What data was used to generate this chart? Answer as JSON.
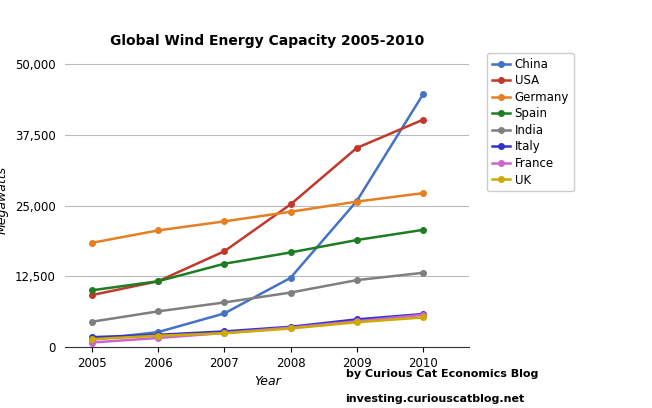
{
  "title": "Global Wind Energy Capacity 2005-2010",
  "xlabel": "Year",
  "ylabel": "Megawatts",
  "years": [
    2005,
    2006,
    2007,
    2008,
    2009,
    2010
  ],
  "series": [
    {
      "label": "China",
      "color": "#4472C4",
      "values": [
        1260,
        2600,
        5900,
        12200,
        25800,
        44700
      ]
    },
    {
      "label": "USA",
      "color": "#C0392B",
      "values": [
        9150,
        11600,
        16900,
        25200,
        35200,
        40200
      ]
    },
    {
      "label": "Germany",
      "color": "#E67E22",
      "values": [
        18400,
        20600,
        22200,
        23900,
        25700,
        27200
      ]
    },
    {
      "label": "Spain",
      "color": "#1E7D22",
      "values": [
        10000,
        11600,
        14700,
        16700,
        18900,
        20700
      ]
    },
    {
      "label": "India",
      "color": "#7F7F7F",
      "values": [
        4430,
        6270,
        7850,
        9600,
        11800,
        13100
      ]
    },
    {
      "label": "Italy",
      "color": "#3333CC",
      "values": [
        1700,
        2120,
        2720,
        3540,
        4850,
        5800
      ]
    },
    {
      "label": "France",
      "color": "#CC66CC",
      "values": [
        760,
        1560,
        2450,
        3400,
        4520,
        5660
      ]
    },
    {
      "label": "UK",
      "color": "#CCAA00",
      "values": [
        1350,
        1960,
        2390,
        3240,
        4340,
        5200
      ]
    }
  ],
  "ylim": [
    0,
    52000
  ],
  "yticks": [
    0,
    12500,
    25000,
    37500,
    50000
  ],
  "ytick_labels": [
    "0",
    "12,500",
    "25,000",
    "37,500",
    "50,000"
  ],
  "watermark_line1": "by Curious Cat Economics Blog",
  "watermark_line2": "investing.curiouscatblog.net",
  "background_color": "#FFFFFF",
  "grid_color": "#BBBBBB",
  "figwidth": 6.52,
  "figheight": 4.08,
  "dpi": 100
}
